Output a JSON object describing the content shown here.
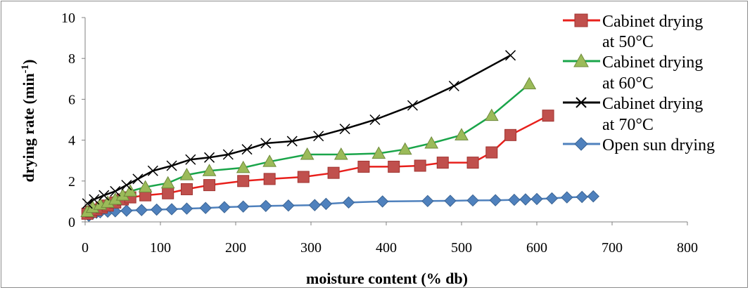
{
  "chart_data": {
    "type": "line",
    "title": "",
    "xlabel": "moisture content (% db)",
    "ylabel": "drying rate (min-1)",
    "ylabel_main": "drying rate (min",
    "ylabel_sup": "-1",
    "ylabel_close": ")",
    "xlim": [
      0,
      800
    ],
    "ylim": [
      0,
      10
    ],
    "xticks": [
      "0",
      "100",
      "200",
      "300",
      "400",
      "500",
      "600",
      "700",
      "800"
    ],
    "yticks": [
      "0",
      "2",
      "4",
      "6",
      "8",
      "10"
    ],
    "grid": false,
    "legend_position": "right",
    "series": [
      {
        "name": "Cabinet drying at 50°C",
        "legend_line1": "Cabinet drying",
        "legend_line2": "at 50°C",
        "color": "#e8201c",
        "marker": "square",
        "marker_fill": "#c0504d",
        "points": [
          [
            3,
            0.4
          ],
          [
            8,
            0.5
          ],
          [
            15,
            0.6
          ],
          [
            22,
            0.7
          ],
          [
            30,
            0.8
          ],
          [
            40,
            0.95
          ],
          [
            50,
            1.1
          ],
          [
            60,
            1.2
          ],
          [
            80,
            1.3
          ],
          [
            110,
            1.4
          ],
          [
            135,
            1.6
          ],
          [
            165,
            1.8
          ],
          [
            210,
            2.0
          ],
          [
            245,
            2.1
          ],
          [
            290,
            2.2
          ],
          [
            330,
            2.4
          ],
          [
            370,
            2.7
          ],
          [
            410,
            2.7
          ],
          [
            445,
            2.75
          ],
          [
            475,
            2.9
          ],
          [
            515,
            2.9
          ],
          [
            540,
            3.4
          ],
          [
            565,
            4.25
          ],
          [
            615,
            5.2
          ]
        ]
      },
      {
        "name": "Cabinet drying at 60°C",
        "legend_line1": "Cabinet drying",
        "legend_line2": "at 60°C",
        "color": "#1aa54a",
        "marker": "triangle",
        "marker_fill": "#9bbb59",
        "points": [
          [
            3,
            0.5
          ],
          [
            10,
            0.7
          ],
          [
            20,
            0.85
          ],
          [
            30,
            0.95
          ],
          [
            40,
            1.1
          ],
          [
            50,
            1.3
          ],
          [
            60,
            1.5
          ],
          [
            80,
            1.7
          ],
          [
            110,
            1.9
          ],
          [
            135,
            2.3
          ],
          [
            165,
            2.5
          ],
          [
            210,
            2.65
          ],
          [
            245,
            2.95
          ],
          [
            295,
            3.3
          ],
          [
            340,
            3.3
          ],
          [
            390,
            3.35
          ],
          [
            425,
            3.55
          ],
          [
            460,
            3.85
          ],
          [
            500,
            4.25
          ],
          [
            540,
            5.2
          ],
          [
            590,
            6.75
          ]
        ]
      },
      {
        "name": "Cabinet drying at 70°C",
        "legend_line1": "Cabinet drying",
        "legend_line2": "at 70°C",
        "color": "#000000",
        "marker": "cross",
        "marker_fill": "#000000",
        "points": [
          [
            3,
            0.9
          ],
          [
            12,
            1.1
          ],
          [
            25,
            1.3
          ],
          [
            40,
            1.5
          ],
          [
            55,
            1.8
          ],
          [
            70,
            2.1
          ],
          [
            90,
            2.5
          ],
          [
            115,
            2.75
          ],
          [
            140,
            3.05
          ],
          [
            165,
            3.15
          ],
          [
            190,
            3.3
          ],
          [
            215,
            3.55
          ],
          [
            240,
            3.85
          ],
          [
            275,
            3.95
          ],
          [
            310,
            4.2
          ],
          [
            345,
            4.55
          ],
          [
            385,
            5.0
          ],
          [
            435,
            5.7
          ],
          [
            490,
            6.65
          ],
          [
            565,
            8.15
          ]
        ]
      },
      {
        "name": "Open sun drying",
        "color": "#4f81bd",
        "marker": "diamond",
        "marker_fill": "#4f81bd",
        "points": [
          [
            5,
            0.3
          ],
          [
            10,
            0.4
          ],
          [
            15,
            0.45
          ],
          [
            20,
            0.47
          ],
          [
            30,
            0.5
          ],
          [
            40,
            0.52
          ],
          [
            55,
            0.55
          ],
          [
            75,
            0.58
          ],
          [
            95,
            0.6
          ],
          [
            115,
            0.62
          ],
          [
            135,
            0.65
          ],
          [
            160,
            0.68
          ],
          [
            185,
            0.72
          ],
          [
            210,
            0.75
          ],
          [
            240,
            0.78
          ],
          [
            270,
            0.8
          ],
          [
            305,
            0.82
          ],
          [
            320,
            0.88
          ],
          [
            350,
            0.95
          ],
          [
            395,
            1.0
          ],
          [
            455,
            1.02
          ],
          [
            485,
            1.03
          ],
          [
            515,
            1.05
          ],
          [
            545,
            1.06
          ],
          [
            570,
            1.08
          ],
          [
            585,
            1.1
          ],
          [
            600,
            1.12
          ],
          [
            620,
            1.15
          ],
          [
            640,
            1.2
          ],
          [
            660,
            1.22
          ],
          [
            675,
            1.25
          ]
        ]
      }
    ]
  }
}
